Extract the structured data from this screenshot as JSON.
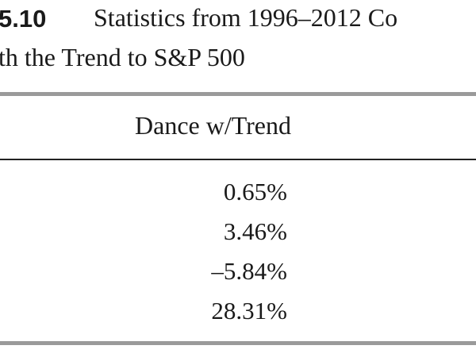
{
  "caption": {
    "number": "5.10",
    "title_line1": "Statistics from 1996–2012 Co",
    "title_line2": "th the Trend to S&P 500"
  },
  "table": {
    "header": "Dance w/Trend",
    "rows": [
      "0.65%",
      "3.46%",
      "–5.84%",
      "28.31%"
    ]
  }
}
